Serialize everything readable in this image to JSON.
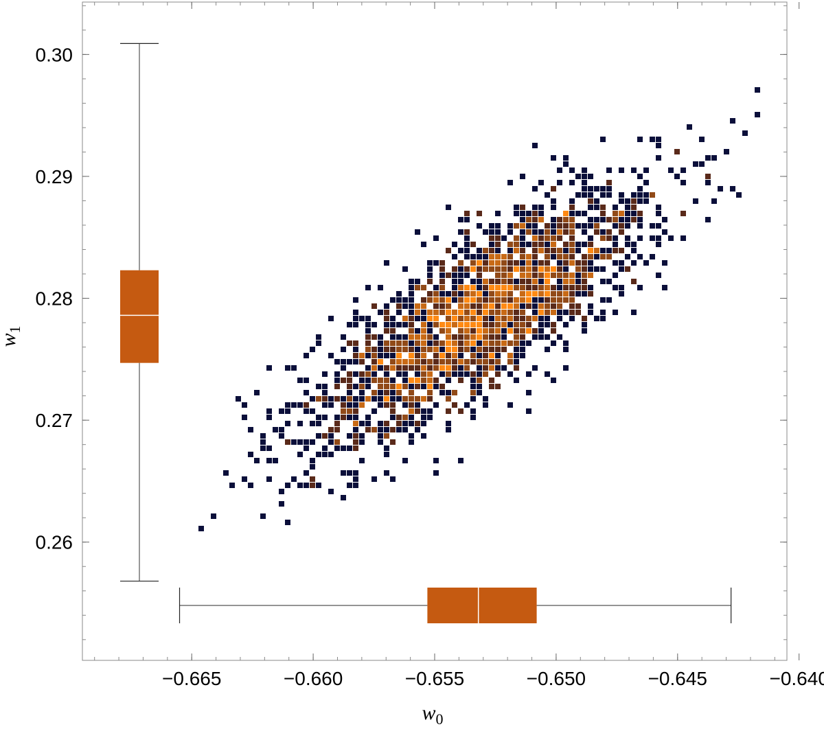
{
  "chart_data": {
    "type": "heatmap",
    "title": "",
    "xlabel": "w",
    "xlabel_sub": "0",
    "ylabel": "w",
    "ylabel_sub": "1",
    "xlim": [
      -0.6695,
      -0.6405
    ],
    "ylim": [
      0.2503,
      0.3043
    ],
    "x_ticks": [
      -0.665,
      -0.66,
      -0.655,
      -0.65,
      -0.645,
      -0.64
    ],
    "x_tick_labels": [
      "−0.665",
      "−0.660",
      "−0.655",
      "−0.650",
      "−0.645",
      "−0.640"
    ],
    "y_ticks": [
      0.26,
      0.27,
      0.28,
      0.29,
      0.3
    ],
    "y_tick_labels": [
      "0.26",
      "0.27",
      "0.28",
      "0.29",
      "0.30"
    ],
    "grid": false,
    "colors": {
      "low": "#0b0f3a",
      "mid": "#5a2a1a",
      "high": "#ff8a14",
      "box": "#c55a11",
      "whisker": "#555555",
      "frame": "#888888"
    },
    "density_model": {
      "mean": [
        -0.6532,
        0.2786
      ],
      "sd": [
        0.0036,
        0.0055
      ],
      "correlation": 0.8,
      "samples": 2200
    },
    "boxplot_w0": {
      "min": -0.6655,
      "q1": -0.6553,
      "median": -0.6532,
      "q3": -0.6508,
      "max": -0.6428
    },
    "boxplot_w1": {
      "min": 0.2568,
      "q1": 0.2747,
      "median": 0.2786,
      "q3": 0.2823,
      "max": 0.3009
    }
  }
}
